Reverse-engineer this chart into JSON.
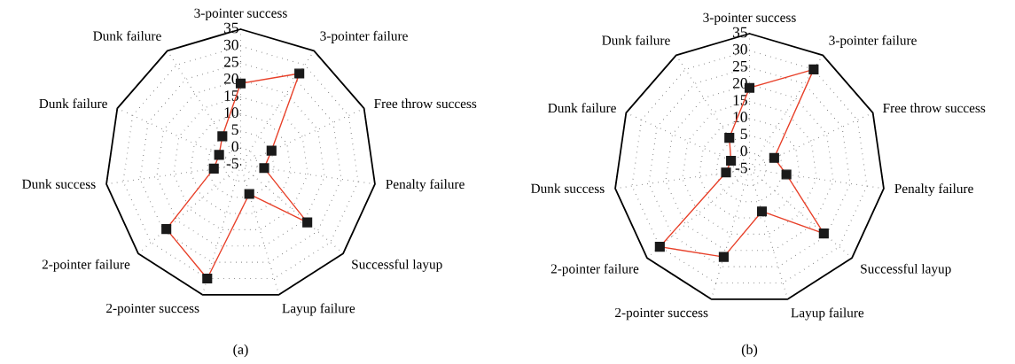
{
  "chart_data": [
    {
      "type": "radar",
      "categories": [
        "3-pointer success",
        "3-pointer failure",
        "Free throw success",
        "Penalty failure",
        "Successful layup",
        "Layup failure",
        "2-pointer success",
        "2-pointer failure",
        "Dunk success",
        "Dunk failure",
        "Dunk failure"
      ],
      "series": [
        {
          "color": "#e8412a",
          "values": [
            19,
            27,
            5,
            2,
            21,
            4,
            30,
            24,
            3,
            2,
            5
          ]
        }
      ],
      "ylim": [
        -5,
        35
      ],
      "yticks": [
        -5,
        0,
        5,
        10,
        15,
        20,
        25,
        30,
        35
      ],
      "grid": true,
      "marker": "square",
      "line_style": "solid",
      "annotations": [
        "(a)"
      ]
    },
    {
      "type": "radar",
      "categories": [
        "3-pointer success",
        "3-pointer failure",
        "Free throw success",
        "Penalty failure",
        "Successful layup",
        "Layup failure",
        "2-pointer success",
        "2-pointer failure",
        "Dunk success",
        "Dunk failure",
        "Dunk failure"
      ],
      "series": [
        {
          "color": "#e8412a",
          "values": [
            19,
            30,
            3,
            6,
            24,
            8,
            22,
            30,
            2,
            1,
            6
          ]
        }
      ],
      "ylim": [
        -5,
        35
      ],
      "yticks": [
        -5,
        0,
        5,
        10,
        15,
        20,
        25,
        30,
        35
      ],
      "grid": true,
      "marker": "square",
      "line_style": "solid",
      "annotations": [
        "(b)"
      ]
    }
  ]
}
